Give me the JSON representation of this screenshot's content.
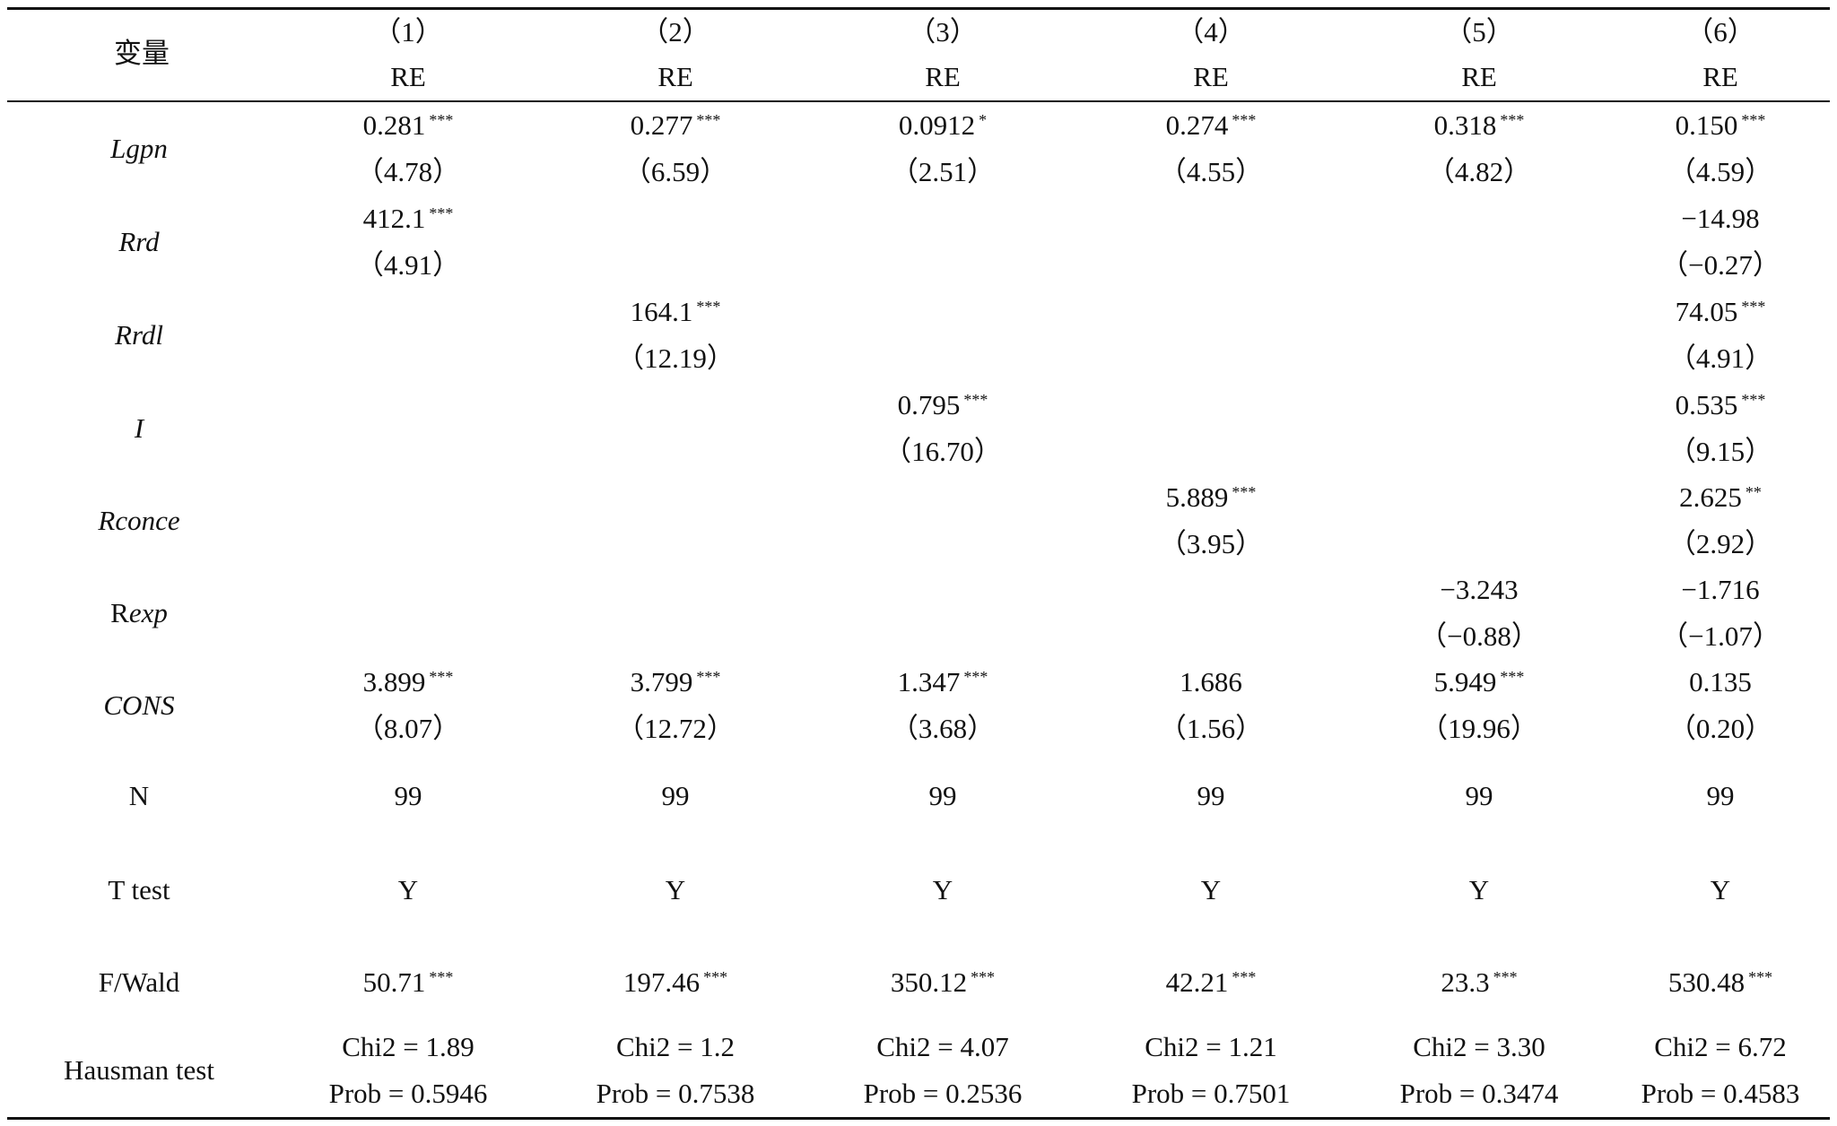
{
  "header": {
    "variable_label": "变量",
    "columns": [
      {
        "num": "（1）",
        "model": "RE"
      },
      {
        "num": "（2）",
        "model": "RE"
      },
      {
        "num": "（3）",
        "model": "RE"
      },
      {
        "num": "（4）",
        "model": "RE"
      },
      {
        "num": "（5）",
        "model": "RE"
      },
      {
        "num": "（6）",
        "model": "RE"
      }
    ]
  },
  "rows": [
    {
      "label": "Lgpn",
      "cells": [
        {
          "coef": "0.281",
          "stars": "***",
          "t": "（4.78）"
        },
        {
          "coef": "0.277",
          "stars": "***",
          "t": "（6.59）"
        },
        {
          "coef": "0.0912",
          "stars": "*",
          "t": "（2.51）"
        },
        {
          "coef": "0.274",
          "stars": "***",
          "t": "（4.55）"
        },
        {
          "coef": "0.318",
          "stars": "***",
          "t": "（4.82）"
        },
        {
          "coef": "0.150",
          "stars": "***",
          "t": "（4.59）"
        }
      ]
    },
    {
      "label": "Rrd",
      "cells": [
        {
          "coef": "412.1",
          "stars": "***",
          "t": "（4.91）"
        },
        {
          "coef": "",
          "stars": "",
          "t": ""
        },
        {
          "coef": "",
          "stars": "",
          "t": ""
        },
        {
          "coef": "",
          "stars": "",
          "t": ""
        },
        {
          "coef": "",
          "stars": "",
          "t": ""
        },
        {
          "coef": "−14.98",
          "stars": "",
          "t": "（−0.27）"
        }
      ]
    },
    {
      "label": "Rrdl",
      "cells": [
        {
          "coef": "",
          "stars": "",
          "t": ""
        },
        {
          "coef": "164.1",
          "stars": "***",
          "t": "（12.19）"
        },
        {
          "coef": "",
          "stars": "",
          "t": ""
        },
        {
          "coef": "",
          "stars": "",
          "t": ""
        },
        {
          "coef": "",
          "stars": "",
          "t": ""
        },
        {
          "coef": "74.05",
          "stars": "***",
          "t": "（4.91）"
        }
      ]
    },
    {
      "label": "I",
      "cells": [
        {
          "coef": "",
          "stars": "",
          "t": ""
        },
        {
          "coef": "",
          "stars": "",
          "t": ""
        },
        {
          "coef": "0.795",
          "stars": "***",
          "t": "（16.70）"
        },
        {
          "coef": "",
          "stars": "",
          "t": ""
        },
        {
          "coef": "",
          "stars": "",
          "t": ""
        },
        {
          "coef": "0.535",
          "stars": "***",
          "t": "（9.15）"
        }
      ]
    },
    {
      "label": "Rconce",
      "cells": [
        {
          "coef": "",
          "stars": "",
          "t": ""
        },
        {
          "coef": "",
          "stars": "",
          "t": ""
        },
        {
          "coef": "",
          "stars": "",
          "t": ""
        },
        {
          "coef": "5.889",
          "stars": "***",
          "t": "（3.95）"
        },
        {
          "coef": "",
          "stars": "",
          "t": ""
        },
        {
          "coef": "2.625",
          "stars": "**",
          "t": "（2.92）"
        }
      ]
    },
    {
      "label_prefix": "R",
      "label_italic": "exp",
      "cells": [
        {
          "coef": "",
          "stars": "",
          "t": ""
        },
        {
          "coef": "",
          "stars": "",
          "t": ""
        },
        {
          "coef": "",
          "stars": "",
          "t": ""
        },
        {
          "coef": "",
          "stars": "",
          "t": ""
        },
        {
          "coef": "−3.243",
          "stars": "",
          "t": "（−0.88）"
        },
        {
          "coef": "−1.716",
          "stars": "",
          "t": "（−1.07）"
        }
      ]
    },
    {
      "label": "CONS",
      "cells": [
        {
          "coef": "3.899",
          "stars": "***",
          "t": "（8.07）"
        },
        {
          "coef": "3.799",
          "stars": "***",
          "t": "（12.72）"
        },
        {
          "coef": "1.347",
          "stars": "***",
          "t": "（3.68）"
        },
        {
          "coef": "1.686",
          "stars": "",
          "t": "（1.56）"
        },
        {
          "coef": "5.949",
          "stars": "***",
          "t": "（19.96）"
        },
        {
          "coef": "0.135",
          "stars": "",
          "t": "（0.20）"
        }
      ]
    }
  ],
  "stats": [
    {
      "label": "N",
      "values": [
        "99",
        "99",
        "99",
        "99",
        "99",
        "99"
      ]
    },
    {
      "label": "T test",
      "values": [
        "Y",
        "Y",
        "Y",
        "Y",
        "Y",
        "Y"
      ]
    },
    {
      "label": "F/Wald",
      "values": [
        "50.71",
        "197.46",
        "350.12",
        "42.21",
        "23.3",
        "530.48"
      ],
      "stars": [
        "***",
        "***",
        "***",
        "***",
        "***",
        "***"
      ]
    }
  ],
  "hausman": {
    "label": "Hausman test",
    "chi2": [
      "Chi2 = 1.89",
      "Chi2 = 1.2",
      "Chi2 = 4.07",
      "Chi2 = 1.21",
      "Chi2 = 3.30",
      "Chi2 = 6.72"
    ],
    "prob": [
      "Prob = 0.5946",
      "Prob = 0.7538",
      "Prob = 0.2536",
      "Prob = 0.7501",
      "Prob = 0.3474",
      "Prob = 0.4583"
    ]
  }
}
